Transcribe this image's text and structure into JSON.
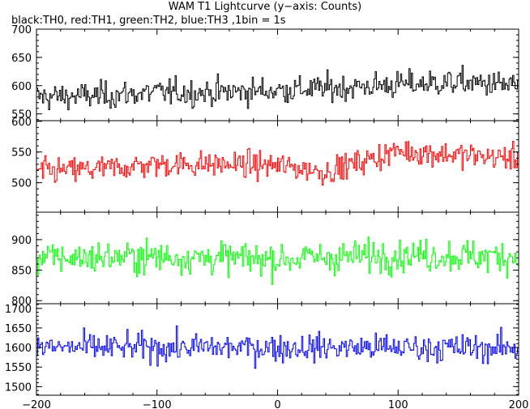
{
  "title": "WAM T1 Lightcurve (y−axis: Counts)",
  "subtitle": "black:TH0, red:TH1, green:TH2, blue:TH3 ,1bin = 1s",
  "chart_data": {
    "type": "line",
    "x_range": [
      -200,
      200
    ],
    "x_ticks": [
      -200,
      -100,
      0,
      100,
      200
    ],
    "grid": false,
    "panels": [
      {
        "name": "TH0",
        "color": "#000000",
        "ylim": [
          538,
          700
        ],
        "yticks": [
          550,
          600,
          650,
          700
        ],
        "anchors": [
          [
            -200,
            580
          ],
          [
            -150,
            582
          ],
          [
            -100,
            588
          ],
          [
            -50,
            588
          ],
          [
            0,
            592
          ],
          [
            50,
            596
          ],
          [
            100,
            602
          ],
          [
            150,
            606
          ],
          [
            200,
            600
          ]
        ],
        "amplitude": 27
      },
      {
        "name": "TH1",
        "color": "#ff0000",
        "ylim": [
          452,
          601
        ],
        "yticks": [
          500,
          550,
          600
        ],
        "anchors": [
          [
            -200,
            518
          ],
          [
            -150,
            522
          ],
          [
            -100,
            530
          ],
          [
            -50,
            530
          ],
          [
            0,
            528
          ],
          [
            40,
            518
          ],
          [
            80,
            540
          ],
          [
            100,
            552
          ],
          [
            150,
            545
          ],
          [
            200,
            540
          ]
        ],
        "amplitude": 24
      },
      {
        "name": "TH2",
        "color": "#00ff00",
        "ylim": [
          795,
          945
        ],
        "yticks": [
          800,
          850,
          900
        ],
        "anchors": [
          [
            -200,
            870
          ],
          [
            -100,
            872
          ],
          [
            0,
            868
          ],
          [
            100,
            875
          ],
          [
            200,
            872
          ]
        ],
        "amplitude": 30
      },
      {
        "name": "TH3",
        "color": "#0000ff",
        "ylim": [
          1478,
          1712
        ],
        "yticks": [
          1500,
          1550,
          1600,
          1650,
          1700
        ],
        "anchors": [
          [
            -200,
            1600
          ],
          [
            -100,
            1600
          ],
          [
            0,
            1600
          ],
          [
            100,
            1600
          ],
          [
            200,
            1598
          ]
        ],
        "amplitude": 40
      }
    ]
  }
}
